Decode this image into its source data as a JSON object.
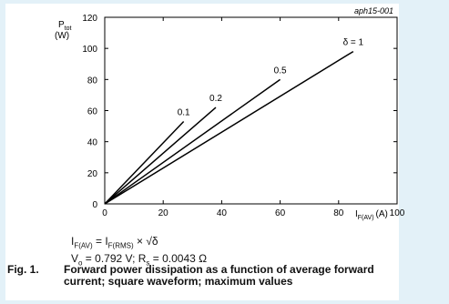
{
  "chart_data": {
    "type": "line",
    "title": "",
    "xlabel": "I",
    "xlabel_sub": "F(AV)",
    "xunit": "(A)",
    "ylabel": "P",
    "ylabel_sub": "tot",
    "yunit": "(W)",
    "xlim": [
      0,
      100
    ],
    "ylim": [
      0,
      120
    ],
    "x_ticks": [
      0,
      20,
      40,
      60,
      80,
      100
    ],
    "y_ticks": [
      0,
      20,
      40,
      60,
      80,
      100,
      120
    ],
    "grid": false,
    "code": "aph15-001",
    "series": [
      {
        "name": "0.1",
        "points": [
          [
            0,
            0
          ],
          [
            27,
            53
          ]
        ]
      },
      {
        "name": "0.2",
        "points": [
          [
            0,
            0
          ],
          [
            38,
            62
          ]
        ]
      },
      {
        "name": "0.5",
        "points": [
          [
            0,
            0
          ],
          [
            60,
            80
          ]
        ]
      },
      {
        "name": "δ = 1",
        "points": [
          [
            0,
            0
          ],
          [
            85,
            98
          ]
        ]
      }
    ]
  },
  "formula": {
    "line1_a": "I",
    "line1_a_sub": "F(AV)",
    "line1_b": " = I",
    "line1_b_sub": "F(RMS)",
    "line1_c": " × √δ",
    "line2_a": "V",
    "line2_a_sub": "o",
    "line2_b": " = 0.792 V; R",
    "line2_b_sub": "s",
    "line2_c": " = 0.0043 Ω"
  },
  "caption": {
    "number": "Fig. 1.",
    "text": "Forward power dissipation as a function of average forward current; square waveform; maximum values"
  }
}
